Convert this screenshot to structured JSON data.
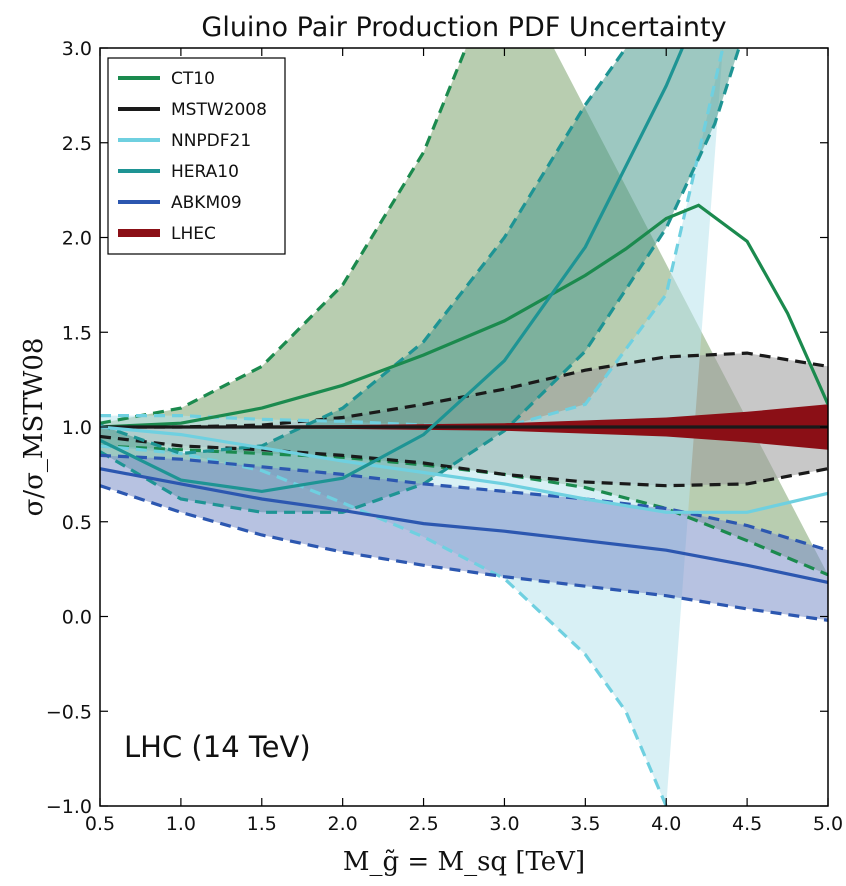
{
  "chart_data": {
    "type": "line",
    "title": "Gluino Pair Production PDF Uncertainty",
    "xlabel": "M_g̃ = M_sq [TeV]",
    "ylabel": "σ/σ_MSTW08",
    "xlim": [
      0.5,
      5.0
    ],
    "ylim": [
      -1.0,
      3.0
    ],
    "xticks": [
      "0.5",
      "1.0",
      "1.5",
      "2.0",
      "2.5",
      "3.0",
      "3.5",
      "4.0",
      "4.5",
      "5.0"
    ],
    "yticks": [
      "−1.0",
      "−0.5",
      "0.0",
      "0.5",
      "1.0",
      "1.5",
      "2.0",
      "2.5",
      "3.0"
    ],
    "annotation": "LHC (14 TeV)",
    "legend_position": "top-left",
    "grid": false,
    "series": [
      {
        "name": "CT10",
        "color": "#1b8a4e",
        "band_fill": "#7ea46f",
        "central": [
          [
            0.5,
            1.0
          ],
          [
            1.0,
            1.02
          ],
          [
            1.5,
            1.1
          ],
          [
            2.0,
            1.22
          ],
          [
            2.5,
            1.38
          ],
          [
            3.0,
            1.56
          ],
          [
            3.5,
            1.8
          ],
          [
            3.75,
            1.94
          ],
          [
            4.0,
            2.1
          ],
          [
            4.2,
            2.17
          ],
          [
            4.5,
            1.98
          ],
          [
            4.75,
            1.6
          ],
          [
            5.0,
            1.12
          ]
        ],
        "upper": [
          [
            0.5,
            1.02
          ],
          [
            1.0,
            1.1
          ],
          [
            1.5,
            1.32
          ],
          [
            2.0,
            1.75
          ],
          [
            2.5,
            2.45
          ],
          [
            3.0,
            3.5
          ]
        ],
        "lower": [
          [
            0.5,
            0.9
          ],
          [
            1.0,
            0.88
          ],
          [
            1.5,
            0.86
          ],
          [
            2.0,
            0.84
          ],
          [
            2.5,
            0.8
          ],
          [
            3.0,
            0.75
          ],
          [
            3.5,
            0.68
          ],
          [
            4.0,
            0.57
          ],
          [
            4.5,
            0.4
          ],
          [
            5.0,
            0.22
          ]
        ]
      },
      {
        "name": "MSTW2008",
        "color": "#1a1a1a",
        "band_fill": "#9a9a9a",
        "central": [
          [
            0.5,
            1.0
          ],
          [
            5.0,
            1.0
          ]
        ],
        "upper": [
          [
            0.5,
            1.0
          ],
          [
            1.0,
            1.0
          ],
          [
            1.5,
            1.01
          ],
          [
            2.0,
            1.05
          ],
          [
            2.5,
            1.12
          ],
          [
            3.0,
            1.2
          ],
          [
            3.5,
            1.3
          ],
          [
            4.0,
            1.37
          ],
          [
            4.5,
            1.39
          ],
          [
            5.0,
            1.32
          ]
        ],
        "lower": [
          [
            0.5,
            0.95
          ],
          [
            1.0,
            0.9
          ],
          [
            1.5,
            0.88
          ],
          [
            2.0,
            0.85
          ],
          [
            2.5,
            0.81
          ],
          [
            3.0,
            0.75
          ],
          [
            3.5,
            0.71
          ],
          [
            4.0,
            0.69
          ],
          [
            4.5,
            0.7
          ],
          [
            5.0,
            0.78
          ]
        ]
      },
      {
        "name": "NNPDF21",
        "color": "#6fd0e0",
        "band_fill": "#b8e4ec",
        "central": [
          [
            0.5,
            1.0
          ],
          [
            1.0,
            0.96
          ],
          [
            1.5,
            0.89
          ],
          [
            2.0,
            0.82
          ],
          [
            2.5,
            0.76
          ],
          [
            3.0,
            0.7
          ],
          [
            3.5,
            0.62
          ],
          [
            4.0,
            0.55
          ],
          [
            4.5,
            0.55
          ],
          [
            5.0,
            0.65
          ]
        ],
        "upper": [
          [
            0.5,
            1.06
          ],
          [
            1.0,
            1.06
          ],
          [
            1.5,
            1.04
          ],
          [
            2.0,
            1.03
          ],
          [
            2.5,
            1.01
          ],
          [
            3.0,
            1.0
          ],
          [
            3.5,
            1.12
          ],
          [
            4.0,
            1.7
          ],
          [
            4.35,
            3.0
          ]
        ],
        "lower": [
          [
            0.5,
            0.9
          ],
          [
            1.0,
            0.86
          ],
          [
            1.5,
            0.77
          ],
          [
            2.0,
            0.6
          ],
          [
            2.5,
            0.42
          ],
          [
            3.0,
            0.2
          ],
          [
            3.5,
            -0.2
          ],
          [
            3.75,
            -0.5
          ],
          [
            4.0,
            -1.0
          ]
        ]
      },
      {
        "name": "HERA10",
        "color": "#1e9494",
        "band_fill": "#4d9b8e",
        "central": [
          [
            0.5,
            0.93
          ],
          [
            1.0,
            0.72
          ],
          [
            1.5,
            0.66
          ],
          [
            2.0,
            0.73
          ],
          [
            2.5,
            0.96
          ],
          [
            3.0,
            1.35
          ],
          [
            3.5,
            1.95
          ],
          [
            4.0,
            2.8
          ],
          [
            4.1,
            3.0
          ]
        ],
        "upper": [
          [
            0.5,
            1.01
          ],
          [
            1.0,
            0.86
          ],
          [
            1.5,
            0.9
          ],
          [
            2.0,
            1.1
          ],
          [
            2.5,
            1.45
          ],
          [
            3.0,
            2.0
          ],
          [
            3.5,
            2.7
          ],
          [
            3.75,
            3.0
          ]
        ],
        "lower": [
          [
            0.5,
            0.87
          ],
          [
            1.0,
            0.62
          ],
          [
            1.5,
            0.55
          ],
          [
            2.0,
            0.55
          ],
          [
            2.5,
            0.7
          ],
          [
            3.0,
            0.98
          ],
          [
            3.5,
            1.4
          ],
          [
            4.0,
            2.05
          ],
          [
            4.3,
            2.6
          ],
          [
            4.45,
            3.0
          ]
        ]
      },
      {
        "name": "ABKM09",
        "color": "#2c57b0",
        "band_fill": "#7c8fc9",
        "central": [
          [
            0.5,
            0.78
          ],
          [
            1.0,
            0.7
          ],
          [
            1.5,
            0.62
          ],
          [
            2.0,
            0.56
          ],
          [
            2.5,
            0.49
          ],
          [
            3.0,
            0.45
          ],
          [
            3.5,
            0.4
          ],
          [
            4.0,
            0.35
          ],
          [
            4.5,
            0.27
          ],
          [
            5.0,
            0.18
          ]
        ],
        "upper": [
          [
            0.5,
            0.85
          ],
          [
            1.0,
            0.83
          ],
          [
            1.5,
            0.79
          ],
          [
            2.0,
            0.75
          ],
          [
            2.5,
            0.7
          ],
          [
            3.0,
            0.66
          ],
          [
            3.5,
            0.62
          ],
          [
            4.0,
            0.57
          ],
          [
            4.5,
            0.48
          ],
          [
            5.0,
            0.35
          ]
        ],
        "lower": [
          [
            0.5,
            0.69
          ],
          [
            1.0,
            0.55
          ],
          [
            1.5,
            0.43
          ],
          [
            2.0,
            0.34
          ],
          [
            2.5,
            0.27
          ],
          [
            3.0,
            0.21
          ],
          [
            3.5,
            0.16
          ],
          [
            4.0,
            0.11
          ],
          [
            4.5,
            0.04
          ],
          [
            5.0,
            -0.02
          ]
        ]
      },
      {
        "name": "LHEC",
        "color": "#8b0f16",
        "band_fill": "#8b0f16",
        "central": [
          [
            0.5,
            1.0
          ],
          [
            5.0,
            1.0
          ]
        ],
        "upper": [
          [
            0.5,
            1.005
          ],
          [
            2.0,
            1.01
          ],
          [
            3.0,
            1.02
          ],
          [
            4.0,
            1.05
          ],
          [
            4.5,
            1.08
          ],
          [
            5.0,
            1.12
          ]
        ],
        "lower": [
          [
            0.5,
            0.995
          ],
          [
            2.0,
            0.99
          ],
          [
            3.0,
            0.98
          ],
          [
            4.0,
            0.95
          ],
          [
            4.5,
            0.92
          ],
          [
            5.0,
            0.88
          ]
        ]
      }
    ]
  }
}
